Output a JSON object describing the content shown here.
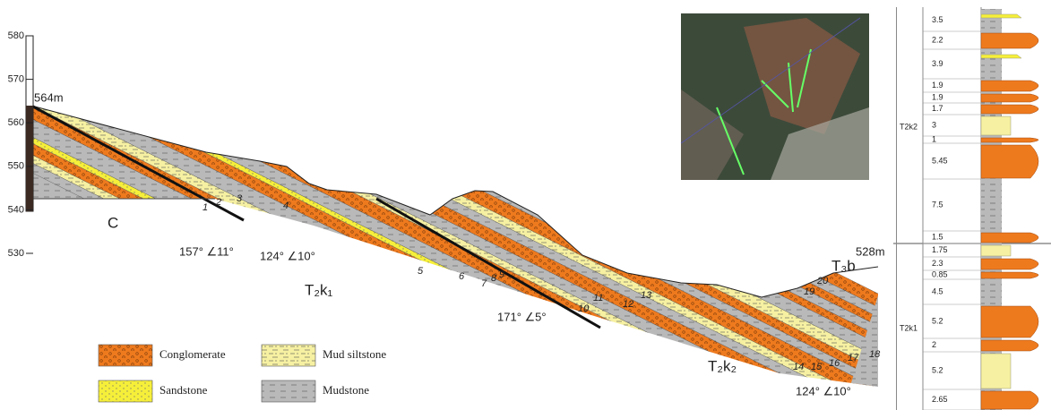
{
  "scale": {
    "ticks": [
      "580",
      "570",
      "560",
      "550",
      "540",
      "530"
    ]
  },
  "section": {
    "labels": {
      "top_left": "564m",
      "top_right": "528m",
      "unit_c": "C",
      "unit_t2k1": "T₂k₁",
      "unit_t2k2": "T₂k₂",
      "unit_t3b": "T₃b"
    },
    "attitudes": [
      "157° ∠11°",
      "124° ∠10°",
      "171° ∠5°",
      "124° ∠10°"
    ],
    "bed_numbers": [
      "1",
      "2",
      "3",
      "4",
      "5",
      "6",
      "7",
      "8",
      "9",
      "10",
      "11",
      "12",
      "13",
      "14",
      "15",
      "16",
      "17",
      "18",
      "19",
      "20"
    ]
  },
  "legend": [
    "Conglomerate",
    "Mud siltstone",
    "Sandstone",
    "Mudstone"
  ],
  "column": {
    "units": [
      "T2k2",
      "T2k1"
    ],
    "thicknesses": [
      "3.5",
      "2.2",
      "3.9",
      "1.9",
      "1.9",
      "1.7",
      "3",
      "1",
      "5.45",
      "7.5",
      "1.5",
      "1.75",
      "2.3",
      "0.85",
      "4.5",
      "5.2",
      "2",
      "5.2",
      "2.65"
    ]
  }
}
